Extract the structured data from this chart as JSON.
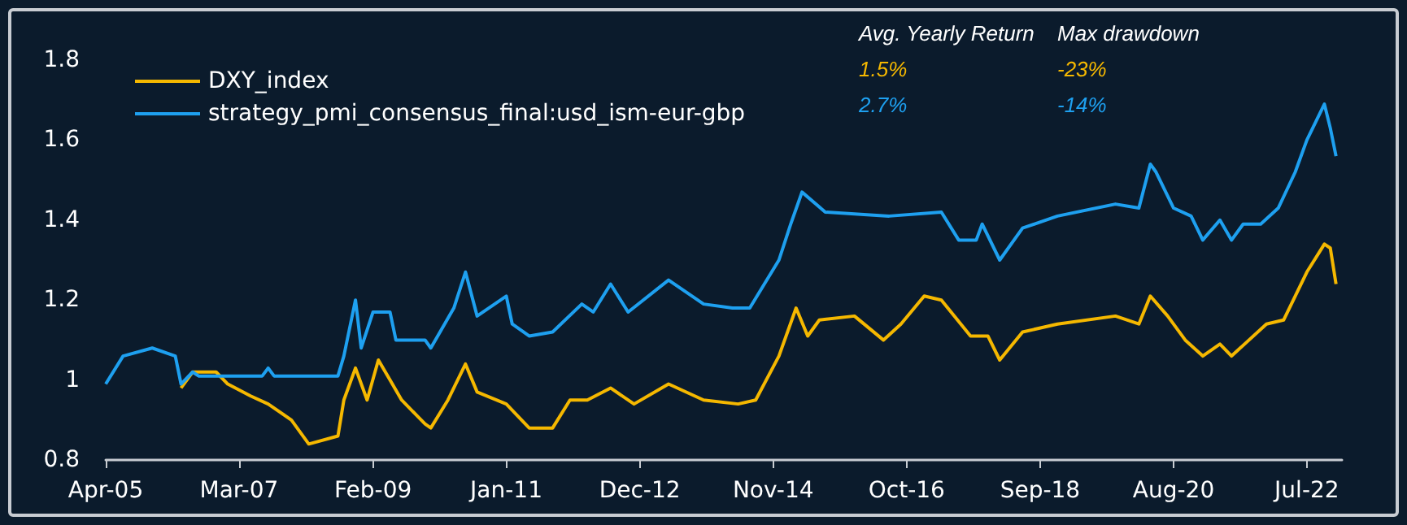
{
  "chart_data": {
    "type": "line",
    "legend": "top left",
    "grid": false,
    "marker": "none",
    "line_style": "solid",
    "xlim": [
      "2005-04",
      "2023-01"
    ],
    "xticks": [
      {
        "value": "2005-04",
        "label": "Apr-05"
      },
      {
        "value": "2007-03",
        "label": "Mar-07"
      },
      {
        "value": "2009-02",
        "label": "Feb-09"
      },
      {
        "value": "2011-01",
        "label": "Jan-11"
      },
      {
        "value": "2012-12",
        "label": "Dec-12"
      },
      {
        "value": "2014-11",
        "label": "Nov-14"
      },
      {
        "value": "2016-10",
        "label": "Oct-16"
      },
      {
        "value": "2018-09",
        "label": "Sep-18"
      },
      {
        "value": "2020-08",
        "label": "Aug-20"
      },
      {
        "value": "2022-07",
        "label": "Jul-22"
      }
    ],
    "ylim": [
      0.8,
      1.8
    ],
    "yticks": [
      0.8,
      1,
      1.2,
      1.4,
      1.6,
      1.8
    ],
    "annotations": [
      "Avg. Yearly Return",
      "1.5%",
      "2.7%",
      "Max drawdown",
      "-23%",
      "-14%"
    ],
    "series": [
      {
        "name": "DXY_index",
        "color": "#f5b800",
        "x": [
          "2006-05",
          "2006-07",
          "2006-11",
          "2007-01",
          "2007-05",
          "2007-08",
          "2007-12",
          "2008-03",
          "2008-08",
          "2008-09",
          "2008-11",
          "2009-01",
          "2009-03",
          "2009-05",
          "2009-07",
          "2009-11",
          "2009-12",
          "2010-03",
          "2010-06",
          "2010-08",
          "2011-01",
          "2011-05",
          "2011-09",
          "2011-12",
          "2012-03",
          "2012-07",
          "2012-11",
          "2013-05",
          "2013-11",
          "2014-05",
          "2014-08",
          "2014-12",
          "2015-03",
          "2015-05",
          "2015-07",
          "2016-01",
          "2016-06",
          "2016-09",
          "2017-01",
          "2017-04",
          "2017-09",
          "2017-12",
          "2018-02",
          "2018-06",
          "2018-12",
          "2019-10",
          "2020-02",
          "2020-04",
          "2020-07",
          "2020-10",
          "2021-01",
          "2021-04",
          "2021-06",
          "2021-12",
          "2022-03",
          "2022-07",
          "2022-10",
          "2022-11",
          "2022-12"
        ],
        "values": [
          0.98,
          1.02,
          1.02,
          0.99,
          0.96,
          0.94,
          0.9,
          0.84,
          0.86,
          0.95,
          1.03,
          0.95,
          1.05,
          1.0,
          0.95,
          0.89,
          0.88,
          0.95,
          1.04,
          0.97,
          0.94,
          0.88,
          0.88,
          0.95,
          0.95,
          0.98,
          0.94,
          0.99,
          0.95,
          0.94,
          0.95,
          1.06,
          1.18,
          1.11,
          1.15,
          1.16,
          1.1,
          1.14,
          1.21,
          1.2,
          1.11,
          1.11,
          1.05,
          1.12,
          1.14,
          1.16,
          1.14,
          1.21,
          1.16,
          1.1,
          1.06,
          1.09,
          1.06,
          1.14,
          1.15,
          1.27,
          1.34,
          1.33,
          1.24
        ]
      },
      {
        "name": "strategy_pmi_consensus_final:usd_ism-eur-gbp",
        "color": "#1ea0f0",
        "x": [
          "2005-04",
          "2005-07",
          "2005-12",
          "2006-04",
          "2006-05",
          "2006-07",
          "2006-08",
          "2007-07",
          "2007-08",
          "2007-09",
          "2008-08",
          "2008-09",
          "2008-11",
          "2008-12",
          "2009-02",
          "2009-05",
          "2009-06",
          "2009-11",
          "2009-12",
          "2010-04",
          "2010-06",
          "2010-08",
          "2011-01",
          "2011-02",
          "2011-05",
          "2011-09",
          "2012-02",
          "2012-04",
          "2012-07",
          "2012-10",
          "2013-05",
          "2013-11",
          "2014-04",
          "2014-07",
          "2014-12",
          "2015-02",
          "2015-04",
          "2015-08",
          "2016-07",
          "2017-04",
          "2017-07",
          "2017-10",
          "2017-11",
          "2018-02",
          "2018-06",
          "2018-12",
          "2019-10",
          "2020-02",
          "2020-04",
          "2020-05",
          "2020-08",
          "2020-11",
          "2021-01",
          "2021-04",
          "2021-06",
          "2021-08",
          "2021-11",
          "2022-02",
          "2022-05",
          "2022-07",
          "2022-10",
          "2022-11",
          "2022-12"
        ],
        "values": [
          0.99,
          1.06,
          1.08,
          1.06,
          0.99,
          1.02,
          1.01,
          1.01,
          1.03,
          1.01,
          1.01,
          1.06,
          1.2,
          1.08,
          1.17,
          1.17,
          1.1,
          1.1,
          1.08,
          1.18,
          1.27,
          1.16,
          1.21,
          1.14,
          1.11,
          1.12,
          1.19,
          1.17,
          1.24,
          1.17,
          1.25,
          1.19,
          1.18,
          1.18,
          1.3,
          1.39,
          1.47,
          1.42,
          1.41,
          1.42,
          1.35,
          1.35,
          1.39,
          1.3,
          1.38,
          1.41,
          1.44,
          1.43,
          1.54,
          1.52,
          1.43,
          1.41,
          1.35,
          1.4,
          1.35,
          1.39,
          1.39,
          1.43,
          1.52,
          1.6,
          1.69,
          1.63,
          1.56
        ]
      }
    ]
  }
}
